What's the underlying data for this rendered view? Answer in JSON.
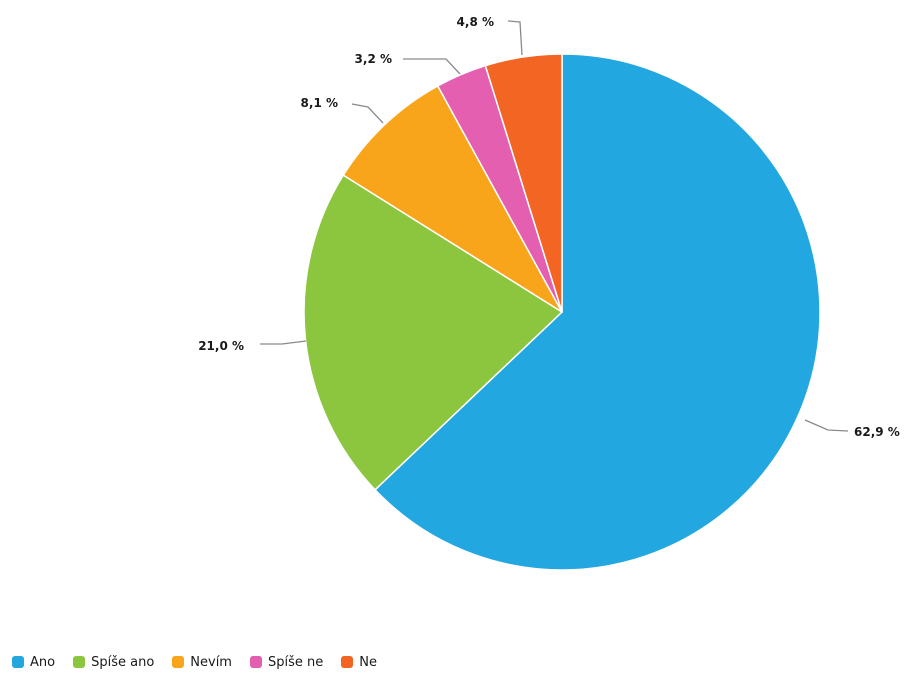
{
  "chart_data": {
    "type": "pie",
    "categories": [
      "Ano",
      "Spíše ano",
      "Nevím",
      "Spíše ne",
      "Ne"
    ],
    "values": [
      62.9,
      21.0,
      8.1,
      3.2,
      4.8
    ],
    "value_labels": [
      "62,9 %",
      "21,0 %",
      "8,1 %",
      "3,2 %",
      "4,8 %"
    ],
    "colors": [
      "#22a7e0",
      "#8cc63f",
      "#f9a51b",
      "#e45fb0",
      "#f26522"
    ],
    "legend_position": "bottom-left",
    "start_angle_deg": 0,
    "direction": "clockwise"
  }
}
